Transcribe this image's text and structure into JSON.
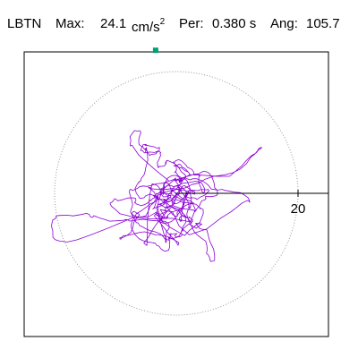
{
  "header": {
    "station": "LBTN",
    "max_label": "Max:",
    "max_value": "24.1",
    "max_unit": "cm/s",
    "max_unit_exp": "2",
    "per_label": "Per:",
    "per_value": "0.380 s",
    "ang_label": "Ang:",
    "ang_value": "105.7"
  },
  "chart_data": {
    "type": "scatter",
    "subtype": "particle-motion orbit (polar trace)",
    "station": "LBTN",
    "max_acceleration_cm_s2": 24.1,
    "period_s": 0.38,
    "angle_deg": 105.7,
    "axis_range": [
      -25,
      25
    ],
    "grid": "dotted circle",
    "grid_ring_radius": 20,
    "ring_label": "20",
    "peak_marker": {
      "x": -3.4,
      "y": 23.5,
      "color": "#00a07a"
    },
    "trace_color": "#8b00d4",
    "trace_seed": 105,
    "trace_samples": 1000
  }
}
